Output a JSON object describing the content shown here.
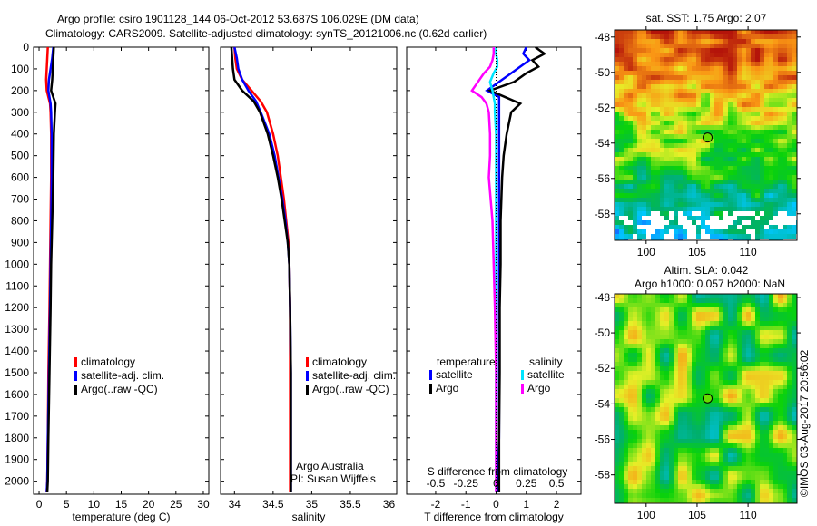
{
  "title_line1": "Argo profile: csiro 1901128_144 06-Oct-2012 53.687S 106.029E (DM data)",
  "title_line2": "Climatology: CARS2009. Satellite-adjusted climatology: synTS_20121006.nc (0.62d earlier)",
  "credit": "©IMOS 03-Aug-2017 20:56:02",
  "colors": {
    "climatology": "#ff0000",
    "satellite": "#0000ff",
    "argo": "#000000",
    "sal_satellite": "#00e5ff",
    "sal_argo": "#ff00ff"
  },
  "chart_data": [
    {
      "type": "line",
      "id": "temperature",
      "xlabel": "temperature (deg C)",
      "xlim": [
        -1,
        31
      ],
      "xticks": [
        0,
        5,
        10,
        15,
        20,
        25,
        30
      ],
      "ylim": [
        0,
        2060
      ],
      "yticks": [
        0,
        100,
        200,
        300,
        400,
        500,
        600,
        700,
        800,
        900,
        1000,
        1100,
        1200,
        1300,
        1400,
        1500,
        1600,
        1700,
        1800,
        1900,
        2000
      ],
      "legend": [
        "climatology",
        "satellite-adj. clim.",
        "Argo(..raw -QC)"
      ],
      "depth": [
        0,
        50,
        100,
        150,
        200,
        230,
        260,
        300,
        400,
        600,
        800,
        1000,
        1200,
        1500,
        1800,
        2000,
        2050
      ],
      "series": [
        {
          "name": "climatology",
          "values": [
            1.6,
            1.5,
            1.4,
            1.3,
            1.4,
            1.7,
            2.0,
            2.1,
            2.2,
            2.2,
            2.1,
            2.0,
            1.9,
            1.7,
            1.6,
            1.5,
            1.4
          ]
        },
        {
          "name": "satellite-adj. clim.",
          "values": [
            2.6,
            2.4,
            2.1,
            1.8,
            1.7,
            1.9,
            2.1,
            2.2,
            2.3,
            2.3,
            2.2,
            2.1,
            2.0,
            1.8,
            1.6,
            1.5,
            1.4
          ]
        },
        {
          "name": "Argo(..raw -QC)",
          "values": [
            2.7,
            2.6,
            2.5,
            2.4,
            2.2,
            2.6,
            3.0,
            2.9,
            2.7,
            2.6,
            2.4,
            2.2,
            2.1,
            1.9,
            1.7,
            1.6,
            1.5
          ]
        }
      ]
    },
    {
      "type": "line",
      "id": "salinity",
      "xlabel": "salinity",
      "xlim": [
        33.82,
        36.1
      ],
      "xticks": [
        34,
        34.5,
        35,
        35.5,
        36
      ],
      "ylim": [
        0,
        2060
      ],
      "legend": [
        "climatology",
        "satellite-adj. clim.",
        "Argo(..raw -QC)"
      ],
      "annotation": [
        "Argo Australia",
        "PI: Susan Wijffels"
      ],
      "depth": [
        0,
        50,
        100,
        150,
        200,
        250,
        300,
        400,
        500,
        600,
        700,
        800,
        900,
        1000,
        1200,
        1500,
        1800,
        2000,
        2050
      ],
      "series": [
        {
          "name": "climatology",
          "values": [
            34.0,
            34.01,
            34.03,
            34.1,
            34.22,
            34.34,
            34.42,
            34.5,
            34.56,
            34.6,
            34.64,
            34.67,
            34.7,
            34.71,
            34.72,
            34.72,
            34.72,
            34.72,
            34.72
          ]
        },
        {
          "name": "satellite-adj. clim.",
          "values": [
            34.0,
            34.03,
            34.05,
            34.1,
            34.18,
            34.28,
            34.34,
            34.45,
            34.52,
            34.57,
            34.62,
            34.66,
            34.69,
            34.71,
            34.72,
            34.73,
            34.73,
            34.73,
            34.73
          ]
        },
        {
          "name": "Argo(..raw -QC)",
          "values": [
            33.96,
            33.97,
            33.98,
            34.0,
            34.1,
            34.25,
            34.33,
            34.43,
            34.5,
            34.56,
            34.61,
            34.65,
            34.69,
            34.71,
            34.72,
            34.73,
            34.73,
            34.73,
            34.73
          ]
        }
      ]
    },
    {
      "type": "line",
      "id": "differences",
      "xlabel": "T difference from climatology",
      "xlabel2": "S difference from climatology",
      "xlim": [
        -2.96,
        2.81
      ],
      "xticks": [
        -2,
        -1,
        0,
        1,
        2
      ],
      "xticks2": [
        -0.5,
        -0.25,
        0,
        0.25,
        0.5
      ],
      "ylim": [
        0,
        2060
      ],
      "legend_titles": [
        "temperature",
        "salinity"
      ],
      "legend": [
        "satellite",
        "Argo",
        "satellite",
        "Argo"
      ],
      "depth": [
        0,
        30,
        60,
        90,
        120,
        160,
        200,
        230,
        260,
        300,
        400,
        500,
        600,
        800,
        1000,
        1200,
        1500,
        1800,
        2000,
        2050
      ],
      "series": [
        {
          "name": "temperature satellite",
          "values": [
            1.0,
            0.9,
            1.1,
            0.8,
            0.5,
            0.1,
            -0.3,
            0.1,
            0.1,
            0.1,
            0.1,
            0.1,
            0.1,
            0.1,
            0.1,
            0.1,
            0.1,
            0.1,
            0.05,
            0.05
          ]
        },
        {
          "name": "temperature Argo",
          "values": [
            1.3,
            1.6,
            1.2,
            1.4,
            1.0,
            0.6,
            -0.2,
            0.3,
            0.8,
            0.5,
            0.35,
            0.25,
            0.2,
            0.15,
            0.15,
            0.12,
            0.12,
            0.1,
            0.1,
            0.1
          ]
        },
        {
          "name": "salinity satellite",
          "values": [
            0.0,
            0.0,
            0.01,
            0.01,
            -0.02,
            -0.05,
            -0.03,
            -0.02,
            -0.01,
            -0.01,
            0.0,
            0.0,
            0.0,
            0.0,
            0.0,
            0.0,
            0.0,
            0.0,
            0.0,
            0.0
          ]
        },
        {
          "name": "salinity Argo",
          "values": [
            -0.02,
            -0.02,
            -0.03,
            -0.05,
            -0.1,
            -0.15,
            -0.2,
            -0.12,
            -0.08,
            -0.06,
            -0.05,
            -0.05,
            -0.06,
            -0.03,
            -0.02,
            -0.01,
            0.0,
            0.0,
            0.0,
            0.0
          ]
        }
      ]
    },
    {
      "type": "heatmap",
      "id": "sst-map",
      "title": "sat. SST: 1.75 Argo: 2.07",
      "xlim": [
        96.9,
        114.8
      ],
      "ylim": [
        -59.5,
        -47.6
      ],
      "xticks": [
        100,
        105,
        110
      ],
      "yticks": [
        -48,
        -50,
        -52,
        -54,
        -56,
        -58
      ],
      "marker": [
        106.029,
        -53.687
      ]
    },
    {
      "type": "heatmap",
      "id": "sla-map",
      "title": "Altim. SLA: 0.042",
      "subtitle": "Argo h1000: 0.057 h2000: NaN",
      "xlim": [
        96.9,
        114.8
      ],
      "ylim": [
        -59.6,
        -47.8
      ],
      "xticks": [
        100,
        105,
        110
      ],
      "yticks": [
        -48,
        -50,
        -52,
        -54,
        -56,
        -58
      ],
      "marker": [
        106.029,
        -53.687
      ]
    }
  ]
}
